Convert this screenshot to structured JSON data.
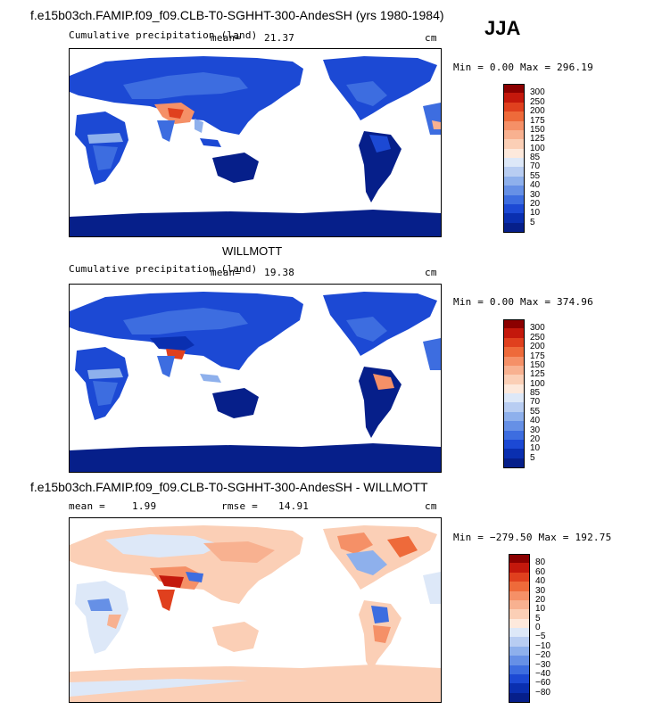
{
  "header": {
    "title1": "f.e15b03ch.FAMIP.f09_f09.CLB-T0-SGHHT-300-AndesSH (yrs 1980-1984)",
    "season": "JJA"
  },
  "panel1": {
    "label": "Cumulative precipitation (land)",
    "mean_label": "mean=",
    "mean_value": "21.37",
    "unit": "cm",
    "minmax": "Min =   0.00 Max = 296.19"
  },
  "panel2": {
    "title": "WILLMOTT",
    "label": "Cumulative precipitation (land)",
    "mean_label": "mean=",
    "mean_value": "19.38",
    "unit": "cm",
    "minmax": "Min =   0.00 Max = 374.96"
  },
  "panel3": {
    "title": "f.e15b03ch.FAMIP.f09_f09.CLB-T0-SGHHT-300-AndesSH - WILLMOTT",
    "mean_label": "mean =",
    "mean_value": "1.99",
    "rmse_label": "rmse =",
    "rmse_value": "14.91",
    "unit": "cm",
    "minmax": "Min = −279.50 Max = 192.75"
  },
  "chart_data": [
    {
      "type": "heatmap",
      "title": "Cumulative precipitation (land)",
      "mean": 21.37,
      "min": 0.0,
      "max": 296.19,
      "unit": "cm",
      "colorbar_levels": [
        300,
        250,
        200,
        175,
        150,
        125,
        100,
        85,
        70,
        55,
        40,
        30,
        20,
        10,
        5
      ],
      "colorbar_colors": [
        "#8b0000",
        "#c4180c",
        "#e0401e",
        "#ee6a3a",
        "#f59067",
        "#f8b190",
        "#fbcfb6",
        "#fde9dc",
        "#dde8f8",
        "#b8cdf2",
        "#8eb0ec",
        "#6690e6",
        "#3d6de0",
        "#1c49d4",
        "#0a2fb0",
        "#061f8a"
      ]
    },
    {
      "type": "heatmap",
      "title": "WILLMOTT",
      "mean": 19.38,
      "min": 0.0,
      "max": 374.96,
      "unit": "cm",
      "colorbar_levels": [
        300,
        250,
        200,
        175,
        150,
        125,
        100,
        85,
        70,
        55,
        40,
        30,
        20,
        10,
        5
      ],
      "colorbar_colors": [
        "#8b0000",
        "#c4180c",
        "#e0401e",
        "#ee6a3a",
        "#f59067",
        "#f8b190",
        "#fbcfb6",
        "#fde9dc",
        "#dde8f8",
        "#b8cdf2",
        "#8eb0ec",
        "#6690e6",
        "#3d6de0",
        "#1c49d4",
        "#0a2fb0",
        "#061f8a"
      ]
    },
    {
      "type": "heatmap",
      "title": "f.e15b03ch.FAMIP.f09_f09.CLB-T0-SGHHT-300-AndesSH - WILLMOTT",
      "mean": 1.99,
      "rmse": 14.91,
      "min": -279.5,
      "max": 192.75,
      "unit": "cm",
      "colorbar_levels": [
        "80",
        "60",
        "40",
        "30",
        "20",
        "10",
        "5",
        "0",
        "−5",
        "−10",
        "−20",
        "−30",
        "−40",
        "−60",
        "−80"
      ],
      "colorbar_colors": [
        "#8b0000",
        "#c4180c",
        "#e0401e",
        "#ee6a3a",
        "#f59067",
        "#f8b190",
        "#fbcfb6",
        "#fde9dc",
        "#dde8f8",
        "#b8cdf2",
        "#8eb0ec",
        "#6690e6",
        "#3d6de0",
        "#1c49d4",
        "#0a2fb0",
        "#061f8a"
      ]
    }
  ]
}
